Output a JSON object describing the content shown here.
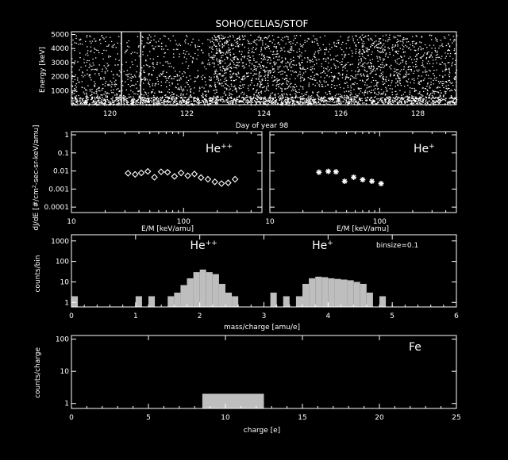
{
  "title": "SOHO/CELIAS/STOF",
  "colors": {
    "background": "#000000",
    "axes": "#ffffff",
    "bars": "#bebebe"
  },
  "chart_data": [
    {
      "id": "energy_vs_time",
      "type": "scatter",
      "xlabel": "Day of year 98",
      "ylabel": "Energy [keV]",
      "xlim": [
        119.0,
        129.0
      ],
      "ylim": [
        0,
        5200
      ],
      "xticks": [
        120,
        122,
        124,
        126,
        128
      ],
      "yticks": [
        1000,
        2000,
        3000,
        4000,
        5000
      ],
      "vertical_lines_x": [
        120.3,
        120.8
      ],
      "density_profile": [
        {
          "day": 119.0,
          "level": 0.25
        },
        {
          "day": 119.5,
          "level": 0.3
        },
        {
          "day": 120.0,
          "level": 0.3
        },
        {
          "day": 120.8,
          "level": 0.22
        },
        {
          "day": 121.5,
          "level": 0.25
        },
        {
          "day": 122.5,
          "level": 0.25
        },
        {
          "day": 122.7,
          "level": 0.95
        },
        {
          "day": 123.5,
          "level": 0.7
        },
        {
          "day": 124.0,
          "level": 0.75
        },
        {
          "day": 124.6,
          "level": 0.5
        },
        {
          "day": 125.5,
          "level": 0.4
        },
        {
          "day": 126.4,
          "level": 0.35
        },
        {
          "day": 126.5,
          "level": 0.9
        },
        {
          "day": 127.5,
          "level": 0.55
        },
        {
          "day": 129.0,
          "level": 0.45
        }
      ]
    },
    {
      "id": "he2_spectrum",
      "type": "scatter",
      "ion_label": "He",
      "ion_charge": "++",
      "xlabel": "E/M [keV/amu]",
      "ylabel": "dJ/dE [#/cm2-sec-sr-keV/amu]",
      "ylabel_prefix": "dJ/dE [#/cm",
      "ylabel_sup": "2",
      "ylabel_suffix": "-sec-sr-keV/amu]",
      "xscale": "log",
      "yscale": "log",
      "xlim": [
        10,
        500
      ],
      "ylim": [
        5e-05,
        1.5
      ],
      "xticks": [
        10,
        100
      ],
      "yticks": [
        1,
        0.1,
        0.01,
        0.001,
        0.0001
      ],
      "ytick_labels": [
        "1",
        "0.1",
        "0.01",
        "0.001",
        "0.0001"
      ],
      "marker": "diamond",
      "points": [
        {
          "x": 32,
          "y": 0.0075
        },
        {
          "x": 37,
          "y": 0.0065
        },
        {
          "x": 42,
          "y": 0.0078
        },
        {
          "x": 48,
          "y": 0.0095
        },
        {
          "x": 55,
          "y": 0.0045
        },
        {
          "x": 63,
          "y": 0.009
        },
        {
          "x": 72,
          "y": 0.0085
        },
        {
          "x": 83,
          "y": 0.005
        },
        {
          "x": 95,
          "y": 0.0078
        },
        {
          "x": 109,
          "y": 0.0055
        },
        {
          "x": 125,
          "y": 0.0068
        },
        {
          "x": 143,
          "y": 0.0043
        },
        {
          "x": 165,
          "y": 0.0035
        },
        {
          "x": 190,
          "y": 0.0025
        },
        {
          "x": 218,
          "y": 0.002
        },
        {
          "x": 250,
          "y": 0.0022
        },
        {
          "x": 288,
          "y": 0.0035
        }
      ]
    },
    {
      "id": "he1_spectrum",
      "type": "scatter",
      "ion_label": "He",
      "ion_charge": "+",
      "xlabel": "E/M [keV/amu]",
      "xscale": "log",
      "yscale": "log",
      "xlim": [
        10,
        500
      ],
      "ylim": [
        5e-05,
        1.5
      ],
      "xticks": [
        10,
        100
      ],
      "marker": "asterisk",
      "points": [
        {
          "x": 28,
          "y": 0.0085
        },
        {
          "x": 34,
          "y": 0.0095
        },
        {
          "x": 40,
          "y": 0.009
        },
        {
          "x": 48,
          "y": 0.0027
        },
        {
          "x": 58,
          "y": 0.0045
        },
        {
          "x": 70,
          "y": 0.0033
        },
        {
          "x": 85,
          "y": 0.0027
        },
        {
          "x": 103,
          "y": 0.002
        }
      ]
    },
    {
      "id": "mass_charge_hist",
      "type": "bar",
      "xlabel": "mass/charge [amu/e]",
      "ylabel": "counts/bin",
      "annotation": "binsize=0.1",
      "peak_labels": [
        {
          "ion": "He",
          "charge": "++",
          "x": 1.85
        },
        {
          "ion": "He",
          "charge": "+",
          "x": 3.75
        }
      ],
      "xlim": [
        0,
        6
      ],
      "ylim": [
        0.6,
        2000
      ],
      "yscale": "log",
      "xticks": [
        0,
        1,
        2,
        3,
        4,
        5,
        6
      ],
      "yticks": [
        1,
        10,
        100,
        1000
      ],
      "ytick_labels": [
        "1",
        "10",
        "100",
        "1000"
      ],
      "binsize": 0.1,
      "bins": [
        {
          "x": 0.0,
          "count": 2
        },
        {
          "x": 1.0,
          "count": 2
        },
        {
          "x": 1.2,
          "count": 2
        },
        {
          "x": 1.5,
          "count": 2
        },
        {
          "x": 1.6,
          "count": 3
        },
        {
          "x": 1.7,
          "count": 7
        },
        {
          "x": 1.8,
          "count": 15
        },
        {
          "x": 1.9,
          "count": 30
        },
        {
          "x": 2.0,
          "count": 40
        },
        {
          "x": 2.1,
          "count": 30
        },
        {
          "x": 2.2,
          "count": 24
        },
        {
          "x": 2.3,
          "count": 8
        },
        {
          "x": 2.4,
          "count": 3
        },
        {
          "x": 2.5,
          "count": 2
        },
        {
          "x": 3.1,
          "count": 3
        },
        {
          "x": 3.3,
          "count": 2
        },
        {
          "x": 3.5,
          "count": 2
        },
        {
          "x": 3.6,
          "count": 8
        },
        {
          "x": 3.7,
          "count": 15
        },
        {
          "x": 3.8,
          "count": 18
        },
        {
          "x": 3.9,
          "count": 17
        },
        {
          "x": 4.0,
          "count": 15
        },
        {
          "x": 4.1,
          "count": 14
        },
        {
          "x": 4.2,
          "count": 13
        },
        {
          "x": 4.3,
          "count": 12
        },
        {
          "x": 4.4,
          "count": 10
        },
        {
          "x": 4.5,
          "count": 8
        },
        {
          "x": 4.6,
          "count": 3
        },
        {
          "x": 4.8,
          "count": 2
        }
      ]
    },
    {
      "id": "fe_charge_hist",
      "type": "bar",
      "ion_label": "Fe",
      "xlabel": "charge [e]",
      "ylabel": "counts/charge",
      "xlim": [
        0,
        25
      ],
      "ylim": [
        0.7,
        130
      ],
      "yscale": "log",
      "xticks": [
        0,
        5,
        10,
        15,
        20,
        25
      ],
      "yticks": [
        1,
        10,
        100
      ],
      "ytick_labels": [
        "1",
        "10",
        "100"
      ],
      "bars": [
        {
          "x0": 8.5,
          "x1": 12.5,
          "count": 2
        }
      ]
    }
  ]
}
